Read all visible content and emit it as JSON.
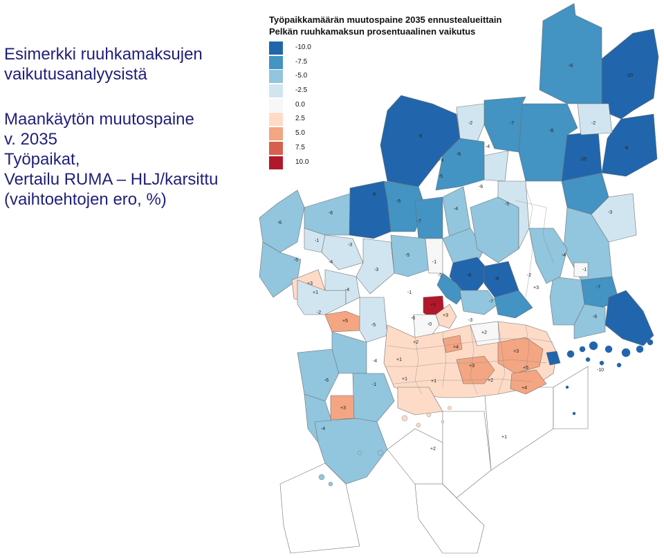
{
  "slide": {
    "title_lines_1": [
      "Esimerkki ruuhkamaksujen",
      "vaikutusanalyysistä"
    ],
    "title_lines_2": [
      "Maankäytön muutospaine",
      "v. 2035",
      "Työpaikat,",
      "Vertailu RUMA – HLJ/karsittu",
      "(vaihtoehtojen ero, %)"
    ]
  },
  "map": {
    "title_line1": "Työpaikkamäärän muutospaine 2035 ennustealueittain",
    "title_line2": "Pelkän ruuhkamaksun prosentuaalinen vaikutus",
    "legend": [
      {
        "label": "-10.0",
        "color": "#2166ac"
      },
      {
        "label": "-7.5",
        "color": "#4393c3"
      },
      {
        "label": "-5.0",
        "color": "#92c5de"
      },
      {
        "label": "-2.5",
        "color": "#d1e5f0"
      },
      {
        "label": "0.0",
        "color": "#f7f7f7"
      },
      {
        "label": "2.5",
        "color": "#fddbc7"
      },
      {
        "label": "5.0",
        "color": "#f4a582"
      },
      {
        "label": "7.5",
        "color": "#d6604d"
      },
      {
        "label": "10.0",
        "color": "#b2182b"
      }
    ],
    "region_labels": [
      {
        "text": "-6"
      },
      {
        "text": "-10"
      },
      {
        "text": "-2"
      },
      {
        "text": "-7"
      },
      {
        "text": "-8"
      },
      {
        "text": "-9"
      },
      {
        "text": "-10"
      },
      {
        "text": "-8"
      },
      {
        "text": "-2"
      },
      {
        "text": "-6"
      },
      {
        "text": "-4"
      },
      {
        "text": "-9"
      },
      {
        "text": "-5"
      },
      {
        "text": "-9"
      },
      {
        "text": "-5"
      },
      {
        "text": "-6"
      },
      {
        "text": "-6"
      },
      {
        "text": "-7"
      },
      {
        "text": "-4"
      },
      {
        "text": "-5"
      },
      {
        "text": "-3"
      },
      {
        "text": "-6"
      },
      {
        "text": "-1"
      },
      {
        "text": "-3"
      },
      {
        "text": "-5"
      },
      {
        "text": "-4"
      },
      {
        "text": "-3"
      },
      {
        "text": "-5"
      },
      {
        "text": "-1"
      },
      {
        "text": "-9"
      },
      {
        "text": "-8"
      },
      {
        "text": "-4"
      },
      {
        "text": "-1"
      },
      {
        "text": "-7"
      },
      {
        "text": "+3"
      },
      {
        "text": "+1"
      },
      {
        "text": "-4"
      },
      {
        "text": "-2"
      },
      {
        "text": "+5"
      },
      {
        "text": "-5"
      },
      {
        "text": "-1"
      },
      {
        "text": "+9"
      },
      {
        "text": "-0"
      },
      {
        "text": "+3"
      },
      {
        "text": "-4"
      },
      {
        "text": "-6"
      },
      {
        "text": "+1"
      },
      {
        "text": "+2"
      },
      {
        "text": "+4"
      },
      {
        "text": "+2"
      },
      {
        "text": "+3"
      },
      {
        "text": "+1"
      },
      {
        "text": "+5"
      },
      {
        "text": "+3"
      },
      {
        "text": "+4"
      },
      {
        "text": "+2"
      },
      {
        "text": "+1"
      },
      {
        "text": "+3"
      },
      {
        "text": "-10"
      },
      {
        "text": "-1"
      },
      {
        "text": "-2"
      },
      {
        "text": "+3"
      },
      {
        "text": "-4"
      },
      {
        "text": "+1"
      },
      {
        "text": "+2"
      },
      {
        "text": "-6"
      },
      {
        "text": "-5"
      },
      {
        "text": "-6"
      },
      {
        "text": "-7"
      },
      {
        "text": "-3"
      }
    ]
  }
}
